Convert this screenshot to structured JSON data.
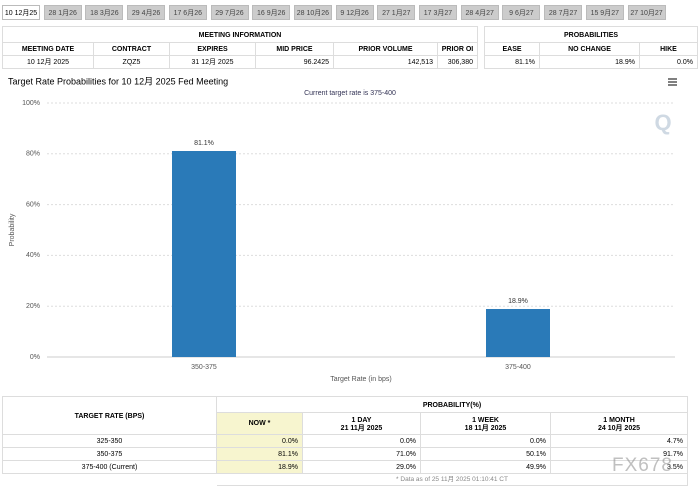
{
  "tabs": [
    "10 12月25",
    "28 1月26",
    "18 3月26",
    "29 4月26",
    "17 6月26",
    "29 7月26",
    "16 9月26",
    "28 10月26",
    "9 12月26",
    "27 1月27",
    "17 3月27",
    "28 4月27",
    "9 6月27",
    "28 7月27",
    "15 9月27",
    "27 10月27"
  ],
  "meeting_info": {
    "title": "MEETING INFORMATION",
    "columns": [
      "MEETING DATE",
      "CONTRACT",
      "EXPIRES",
      "MID PRICE",
      "PRIOR VOLUME",
      "PRIOR OI"
    ],
    "row": [
      "10 12月 2025",
      "ZQZ5",
      "31 12月 2025",
      "96.2425",
      "142,513",
      "306,380"
    ]
  },
  "probabilities": {
    "title": "PROBABILITIES",
    "columns": [
      "EASE",
      "NO CHANGE",
      "HIKE"
    ],
    "row": [
      "81.1%",
      "18.9%",
      "0.0%"
    ]
  },
  "chart_data": {
    "type": "bar",
    "title": "Target Rate Probabilities for 10 12月 2025 Fed Meeting",
    "subtitle": "Current target rate is 375-400",
    "categories": [
      "350-375",
      "375-400"
    ],
    "values": [
      81.1,
      18.9
    ],
    "value_labels": [
      "81.1%",
      "18.9%"
    ],
    "color": "#2a7ab8",
    "x_label": "Target Rate (in bps)",
    "y_label": "Probability",
    "ylim": [
      0,
      100
    ],
    "yticks": [
      {
        "value": 0,
        "label": "0%"
      },
      {
        "value": 20,
        "label": "20%"
      },
      {
        "value": 40,
        "label": "40%"
      },
      {
        "value": 60,
        "label": "60%"
      },
      {
        "value": 80,
        "label": "80%"
      },
      {
        "value": 100,
        "label": "100%"
      }
    ],
    "grid": true
  },
  "history": {
    "rate_header": "TARGET RATE (BPS)",
    "prob_header": "PROBABILITY(%)",
    "columns": [
      {
        "name": "NOW *",
        "date": null
      },
      {
        "name": "1 DAY",
        "date": "21 11月 2025"
      },
      {
        "name": "1 WEEK",
        "date": "18 11月 2025"
      },
      {
        "name": "1 MONTH",
        "date": "24 10月 2025"
      }
    ],
    "rows": [
      [
        "325-350",
        "0.0%",
        "0.0%",
        "0.0%",
        "4.7%"
      ],
      [
        "350-375",
        "81.1%",
        "71.0%",
        "50.1%",
        "91.7%"
      ],
      [
        "375-400 (Current)",
        "18.9%",
        "29.0%",
        "49.9%",
        "3.5%"
      ]
    ],
    "footnote": "* Data as of 25 11月 2025 01:10:41 CT"
  },
  "watermark": "FX678"
}
